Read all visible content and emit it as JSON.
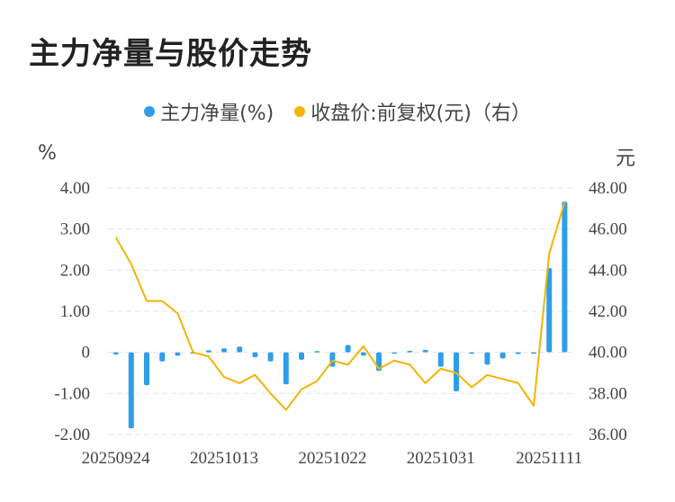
{
  "title": "主力净量与股价走势",
  "legend": {
    "bar_label": "主力净量(%)",
    "line_label": "收盘价:前复权(元)（右）"
  },
  "colors": {
    "bar": "#2f9ee9",
    "line": "#f4b400",
    "grid": "#e5e5e5"
  },
  "chart_data": {
    "type": "bar+line",
    "left_unit": "%",
    "right_unit": "元",
    "left_ylim": [
      -2.0,
      4.0
    ],
    "right_ylim": [
      36.0,
      48.0
    ],
    "left_ticks": [
      "4.00",
      "3.00",
      "2.00",
      "1.00",
      "0",
      "-1.00",
      "-2.00"
    ],
    "right_ticks": [
      "48.00",
      "46.00",
      "44.00",
      "42.00",
      "40.00",
      "38.00",
      "36.00"
    ],
    "x_tick_labels": [
      "20250924",
      "20251013",
      "20251022",
      "20251031",
      "20251111"
    ],
    "x_tick_indices": [
      0,
      7,
      14,
      21,
      28
    ],
    "grid": "horizontal-dashed",
    "series": [
      {
        "name": "主力净量(%)",
        "kind": "bar",
        "axis": "left",
        "values": [
          -0.05,
          -1.85,
          -0.8,
          -0.22,
          -0.08,
          0.0,
          0.05,
          0.1,
          0.14,
          -0.12,
          -0.22,
          -0.78,
          -0.18,
          0.03,
          -0.35,
          0.18,
          -0.08,
          -0.45,
          -0.02,
          0.04,
          0.06,
          -0.35,
          -0.95,
          -0.02,
          -0.3,
          -0.15,
          -0.04,
          -0.02,
          2.05,
          3.67
        ]
      },
      {
        "name": "收盘价:前复权(元)（右）",
        "kind": "line",
        "axis": "right",
        "values": [
          45.6,
          44.3,
          42.5,
          42.5,
          41.9,
          40.0,
          39.8,
          38.8,
          38.5,
          38.9,
          38.0,
          37.2,
          38.2,
          38.6,
          39.6,
          39.4,
          40.3,
          39.2,
          39.6,
          39.4,
          38.5,
          39.2,
          39.0,
          38.3,
          38.9,
          38.7,
          38.5,
          37.4,
          44.8,
          47.3
        ]
      }
    ]
  }
}
